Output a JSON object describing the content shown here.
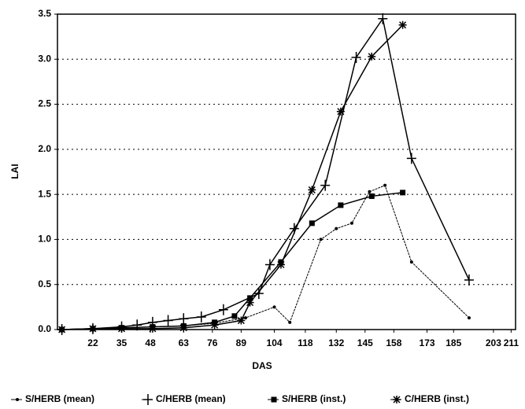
{
  "chart_data": {
    "type": "line",
    "xlabel": "DAS",
    "ylabel": "LAI",
    "xlim": [
      6,
      213
    ],
    "ylim": [
      0,
      3.5
    ],
    "xticks": [
      22,
      35,
      48,
      63,
      76,
      89,
      104,
      118,
      132,
      145,
      158,
      173,
      185,
      203,
      211
    ],
    "yticks": [
      {
        "value": 0,
        "label": "0.0"
      },
      {
        "value": 0.5,
        "label": "0.5"
      },
      {
        "value": 1,
        "label": "1.0"
      },
      {
        "value": 1.5,
        "label": "1.5"
      },
      {
        "value": 2,
        "label": "2.0"
      },
      {
        "value": 2.5,
        "label": "2.5"
      },
      {
        "value": 3,
        "label": "3.0"
      },
      {
        "value": 3.5,
        "label": "3.5"
      }
    ],
    "grid": true,
    "legend": "bottom",
    "series": [
      {
        "name": "S/HERB (mean)",
        "color": "#000000",
        "marker": "dot",
        "x": [
          8,
          22,
          35,
          49,
          63,
          77,
          91,
          104,
          111,
          125,
          132,
          139,
          147,
          154,
          166,
          192
        ],
        "values": [
          0,
          0.01,
          0.02,
          0.03,
          0.04,
          0.07,
          0.13,
          0.25,
          0.08,
          1.0,
          1.12,
          1.18,
          1.53,
          1.6,
          0.75,
          0.13
        ]
      },
      {
        "name": "C/HERB (mean)",
        "color": "#000000",
        "marker": "plus",
        "x": [
          8,
          22,
          35,
          42,
          49,
          56,
          63,
          71,
          81,
          97,
          102,
          113,
          127,
          141,
          153,
          166,
          192
        ],
        "values": [
          0,
          0.01,
          0.03,
          0.05,
          0.08,
          0.1,
          0.12,
          0.14,
          0.22,
          0.4,
          0.72,
          1.12,
          1.6,
          3.02,
          3.45,
          1.9,
          0.55
        ]
      },
      {
        "name": "S/HERB (inst.)",
        "color": "#000000",
        "marker": "square",
        "x": [
          8,
          22,
          35,
          49,
          63,
          77,
          86,
          93,
          107,
          121,
          134,
          148,
          162
        ],
        "values": [
          0,
          0.01,
          0.02,
          0.03,
          0.04,
          0.08,
          0.15,
          0.35,
          0.75,
          1.18,
          1.38,
          1.48,
          1.52
        ]
      },
      {
        "name": "C/HERB (inst.)",
        "color": "#000000",
        "marker": "star",
        "x": [
          8,
          22,
          35,
          49,
          63,
          77,
          89,
          93,
          107,
          121,
          134,
          148,
          162
        ],
        "values": [
          0,
          0.01,
          0.01,
          0.01,
          0.02,
          0.05,
          0.1,
          0.3,
          0.72,
          1.55,
          2.42,
          3.03,
          3.38
        ]
      }
    ]
  }
}
